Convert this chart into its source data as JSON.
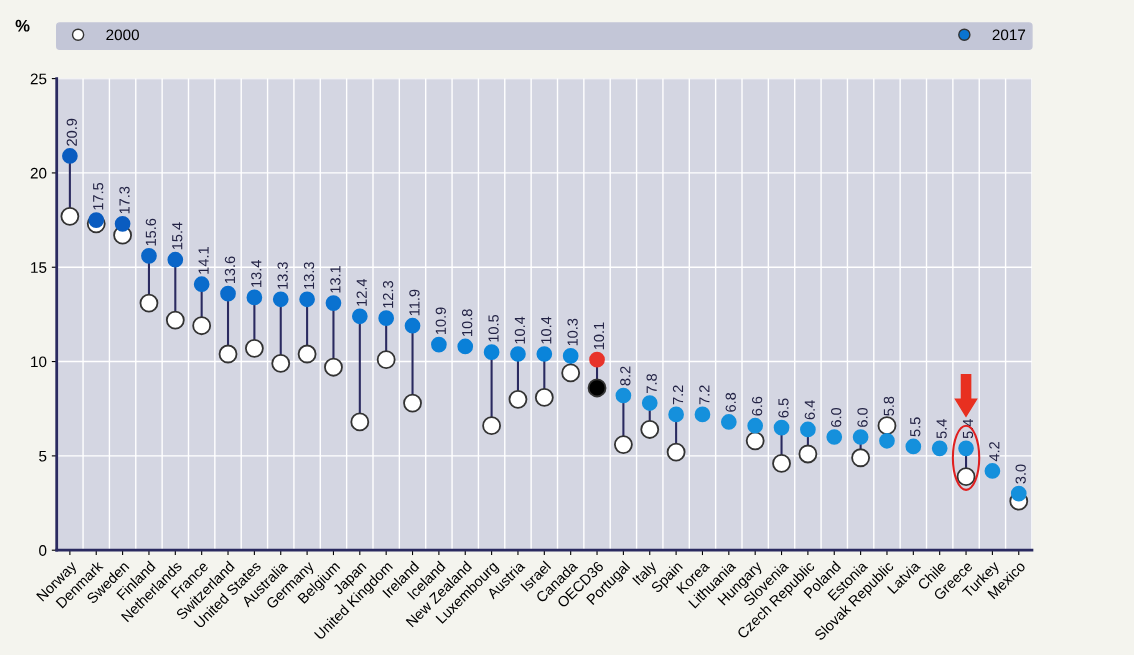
{
  "chart_data": {
    "type": "scatter",
    "ylabel": "%",
    "categories": [
      "Norway",
      "Denmark",
      "Sweden",
      "Finland",
      "Netherlands",
      "France",
      "Switzerland",
      "United States",
      "Australia",
      "Germany",
      "Belgium",
      "Japan",
      "United Kingdom",
      "Ireland",
      "Iceland",
      "New Zealand",
      "Luxembourg",
      "Austria",
      "Israel",
      "Canada",
      "OECD36",
      "Portugal",
      "Italy",
      "Spain",
      "Korea",
      "Lithuania",
      "Hungary",
      "Slovenia",
      "Czech Republic",
      "Poland",
      "Estonia",
      "Slovak Republic",
      "Latvia",
      "Chile",
      "Greece",
      "Turkey",
      "Mexico"
    ],
    "series": [
      {
        "name": "2000",
        "color": "#ffffff",
        "colors": [
          "#ffffff",
          "#ffffff",
          "#ffffff",
          "#ffffff",
          "#ffffff",
          "#ffffff",
          "#ffffff",
          "#ffffff",
          "#ffffff",
          "#ffffff",
          "#ffffff",
          "#ffffff",
          "#ffffff",
          "#ffffff",
          "#ffffff",
          "#ffffff",
          "#ffffff",
          "#ffffff",
          "#ffffff",
          "#ffffff",
          "#000000",
          "#ffffff",
          "#ffffff",
          "#ffffff",
          "#ffffff",
          "#ffffff",
          "#ffffff",
          "#ffffff",
          "#ffffff",
          "#ffffff",
          "#ffffff",
          "#ffffff",
          "#ffffff",
          "#ffffff",
          "#ffffff",
          "#ffffff",
          "#ffffff"
        ],
        "values": [
          17.7,
          17.3,
          16.7,
          13.1,
          12.2,
          11.9,
          10.4,
          10.7,
          9.9,
          10.4,
          9.7,
          6.8,
          10.1,
          7.8,
          null,
          null,
          6.6,
          8.0,
          8.1,
          9.4,
          8.6,
          5.6,
          6.4,
          5.2,
          null,
          null,
          5.8,
          4.6,
          5.1,
          null,
          4.9,
          6.6,
          null,
          null,
          3.9,
          null,
          2.6
        ]
      },
      {
        "name": "2017",
        "color": "#0a74d0",
        "colors": [
          "#0a5cc0",
          "#0a5cc0",
          "#0a5cc0",
          "#0a66c8",
          "#0a66c8",
          "#0a6ccc",
          "#0a6ccc",
          "#0a72d0",
          "#0a72d0",
          "#0a72d0",
          "#0a72d0",
          "#0a78d4",
          "#0a78d4",
          "#0a78d4",
          "#0a80d8",
          "#0a80d8",
          "#0a84da",
          "#0a84da",
          "#0a84da",
          "#0a88dc",
          "#e8332a",
          "#1590dc",
          "#1590dc",
          "#1590dc",
          "#1590dc",
          "#1590dc",
          "#1590dc",
          "#1590dc",
          "#1590dc",
          "#1590dc",
          "#1590dc",
          "#1590dc",
          "#1590dc",
          "#1590dc",
          "#1590dc",
          "#1590dc",
          "#1590dc"
        ],
        "values": [
          20.9,
          17.5,
          17.3,
          15.6,
          15.4,
          14.1,
          13.6,
          13.4,
          13.3,
          13.3,
          13.1,
          12.4,
          12.3,
          11.9,
          10.9,
          10.8,
          10.5,
          10.4,
          10.4,
          10.3,
          10.1,
          8.2,
          7.8,
          7.2,
          7.2,
          6.8,
          6.6,
          6.5,
          6.4,
          6.0,
          6.0,
          5.8,
          5.5,
          5.4,
          5.4,
          4.2,
          3.0
        ],
        "value_labels": [
          "20.9",
          "17.5",
          "17.3",
          "15.6",
          "15.4",
          "14.1",
          "13.6",
          "13.4",
          "13.3",
          "13.3",
          "13.1",
          "12.4",
          "12.3",
          "11.9",
          "10.9",
          "10.8",
          "10.5",
          "10.4",
          "10.4",
          "10.3",
          "10.1",
          "8.2",
          "7.8",
          "7.2",
          "7.2",
          "6.8",
          "6.6",
          "6.5",
          "6.4",
          "6.0",
          "6.0",
          "5.8",
          "5.5",
          "5.4",
          "5.4",
          "4.2",
          "3.0"
        ]
      }
    ],
    "ylim": [
      0,
      25
    ],
    "yticks": [
      0,
      5,
      10,
      15,
      20,
      25
    ],
    "grid": true,
    "legend": "top",
    "marker": "circle"
  }
}
